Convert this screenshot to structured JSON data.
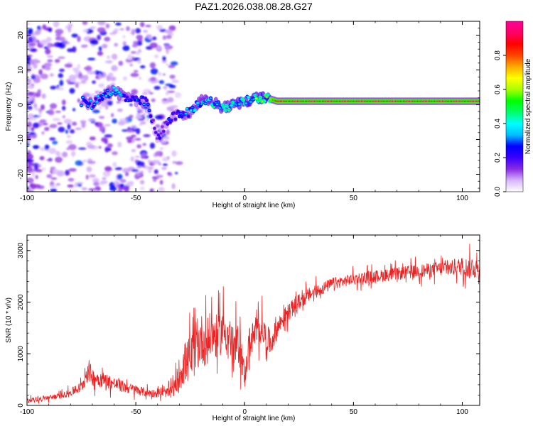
{
  "title": "PAZ1.2026.038.08.28.G27",
  "chart_data": [
    {
      "type": "heatmap",
      "id": "spectrogram",
      "xlabel": "Height of straight line (km)",
      "ylabel": "Frequency (Hz)",
      "xlim": [
        -100,
        108
      ],
      "ylim": [
        -25,
        24
      ],
      "xticks": [
        -100,
        -50,
        0,
        50,
        100
      ],
      "yticks": [
        -20,
        -10,
        0,
        10,
        20
      ],
      "colorbar": {
        "label": "Normalized spectral amplitude",
        "ticks": [
          "0.0",
          "0.2",
          "0.4",
          "0.6",
          "0.8"
        ],
        "range": [
          0,
          1
        ],
        "stops": [
          "#ffffff",
          "#d6b4ff",
          "#8a2be2",
          "#3a00ff",
          "#0000ff",
          "#00bfff",
          "#00ffff",
          "#00ff66",
          "#00ff00",
          "#aaff00",
          "#ffff00",
          "#ffaa00",
          "#ff4400",
          "#ff0000",
          "#ff0066",
          "#ff0099"
        ]
      },
      "ridge": [
        {
          "h": -75,
          "f": 1,
          "amp": 0.3
        },
        {
          "h": -70,
          "f": 0,
          "amp": 0.35
        },
        {
          "h": -65,
          "f": 3,
          "amp": 0.3
        },
        {
          "h": -60,
          "f": 4,
          "amp": 0.4
        },
        {
          "h": -55,
          "f": 2,
          "amp": 0.35
        },
        {
          "h": -50,
          "f": 1,
          "amp": 0.3
        },
        {
          "h": -45,
          "f": 1,
          "amp": 0.3
        },
        {
          "h": -40,
          "f": -10,
          "amp": 0.2
        },
        {
          "h": -35,
          "f": -4,
          "amp": 0.25
        },
        {
          "h": -30,
          "f": -3,
          "amp": 0.3
        },
        {
          "h": -25,
          "f": -2,
          "amp": 0.35
        },
        {
          "h": -20,
          "f": 1,
          "amp": 0.4
        },
        {
          "h": -15,
          "f": 1,
          "amp": 0.45
        },
        {
          "h": -10,
          "f": -1,
          "amp": 0.45
        },
        {
          "h": -5,
          "f": 0,
          "amp": 0.5
        },
        {
          "h": 0,
          "f": 1,
          "amp": 0.5
        },
        {
          "h": 5,
          "f": 2,
          "amp": 0.55
        },
        {
          "h": 10,
          "f": 2,
          "amp": 0.6
        },
        {
          "h": 15,
          "f": 1,
          "amp": 0.9
        },
        {
          "h": 30,
          "f": 1,
          "amp": 0.95
        },
        {
          "h": 50,
          "f": 1,
          "amp": 0.95
        },
        {
          "h": 70,
          "f": 1,
          "amp": 0.95
        },
        {
          "h": 90,
          "f": 1,
          "amp": 0.95
        },
        {
          "h": 108,
          "f": 1,
          "amp": 0.95
        }
      ]
    },
    {
      "type": "line",
      "id": "snr",
      "xlabel": "Height of straight line (km)",
      "ylabel": "SNR (10 * v/v)",
      "xlim": [
        -100,
        108
      ],
      "ylim": [
        0,
        3300
      ],
      "xticks": [
        -100,
        -50,
        0,
        50,
        100
      ],
      "yticks": [
        0,
        1000,
        2000,
        3000
      ],
      "series": [
        {
          "name": "SNR",
          "color": "#ee2222",
          "x": [
            -100,
            -95,
            -90,
            -85,
            -80,
            -75,
            -72,
            -70,
            -65,
            -60,
            -55,
            -50,
            -45,
            -40,
            -35,
            -32,
            -30,
            -28,
            -25,
            -22,
            -20,
            -18,
            -15,
            -12,
            -10,
            -8,
            -5,
            -3,
            -1,
            0,
            2,
            5,
            8,
            10,
            12,
            15,
            18,
            20,
            25,
            30,
            35,
            40,
            45,
            50,
            55,
            60,
            65,
            70,
            75,
            80,
            85,
            90,
            95,
            100,
            103,
            105,
            108
          ],
          "y": [
            100,
            120,
            150,
            180,
            250,
            350,
            700,
            550,
            500,
            420,
            350,
            300,
            250,
            230,
            250,
            350,
            600,
            800,
            900,
            1100,
            1300,
            1200,
            1400,
            1300,
            1500,
            1400,
            1100,
            1200,
            900,
            500,
            1200,
            1400,
            1500,
            1300,
            1200,
            1500,
            1700,
            1800,
            2000,
            2150,
            2250,
            2350,
            2400,
            2450,
            2480,
            2500,
            2520,
            2550,
            2580,
            2600,
            2620,
            2650,
            2660,
            2700,
            2650,
            2700,
            2600
          ],
          "noise": [
            60,
            60,
            70,
            80,
            100,
            160,
            350,
            250,
            220,
            180,
            160,
            140,
            120,
            110,
            130,
            250,
            500,
            600,
            650,
            700,
            700,
            650,
            650,
            600,
            600,
            550,
            550,
            550,
            500,
            300,
            450,
            450,
            400,
            400,
            350,
            300,
            250,
            250,
            220,
            200,
            180,
            170,
            160,
            160,
            160,
            170,
            170,
            180,
            180,
            190,
            200,
            210,
            220,
            250,
            300,
            300,
            280
          ]
        }
      ]
    }
  ]
}
